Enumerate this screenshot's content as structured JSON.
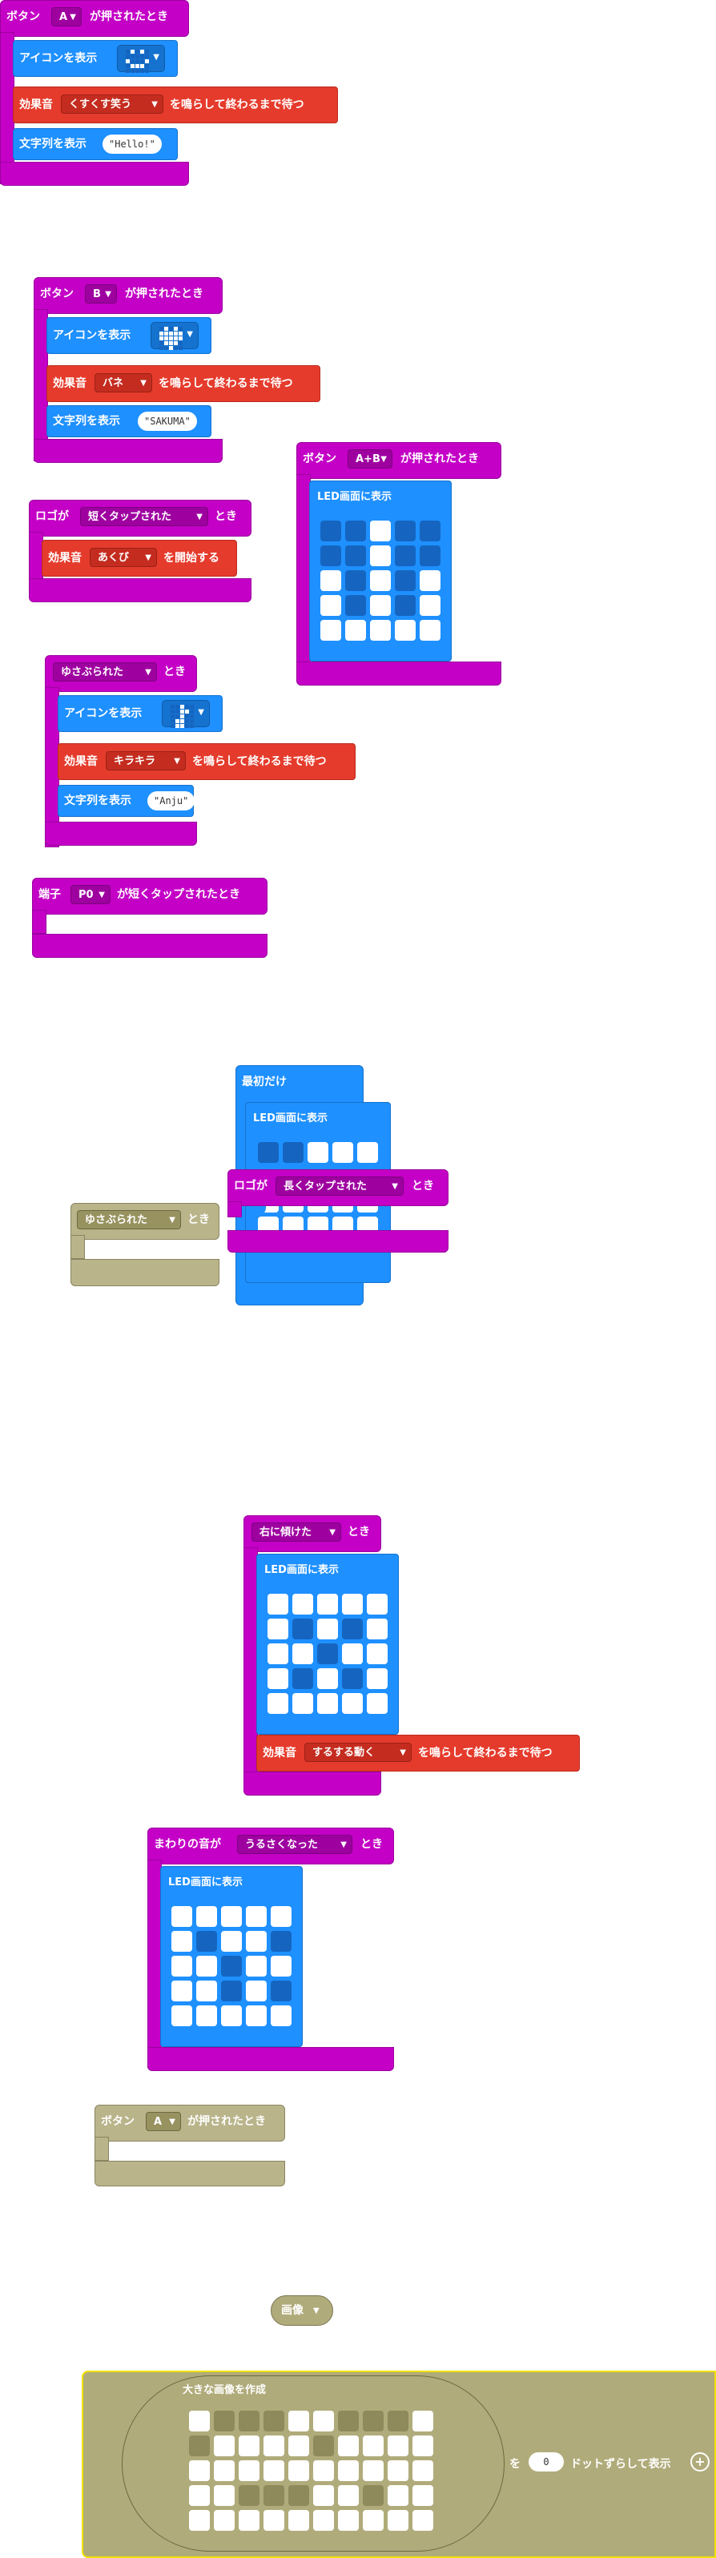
{
  "colors": {
    "event": "#c400c6",
    "basic": "#1e90ff",
    "music": "#e53b2c",
    "disabled": "#b0ab7a"
  },
  "blocks": {
    "btnA": {
      "prefix": "ボタン",
      "button": "A",
      "suffix": "が押されたとき",
      "show_icon": "アイコンを表示",
      "icon_mini": [
        0,
        1,
        0,
        1,
        0,
        0,
        0,
        0,
        0,
        0,
        1,
        0,
        0,
        0,
        1,
        0,
        1,
        1,
        1,
        0,
        0,
        0,
        0,
        0,
        0
      ],
      "sound_prefix": "効果音",
      "sound": "くすくす笑う",
      "sound_suffix": "を鳴らして終わるまで待つ",
      "show_string": "文字列を表示",
      "string": "Hello!"
    },
    "btnB": {
      "prefix": "ボタン",
      "button": "B",
      "suffix": "が押されたとき",
      "show_icon": "アイコンを表示",
      "icon_mini": [
        0,
        1,
        0,
        1,
        0,
        1,
        1,
        1,
        1,
        1,
        1,
        1,
        1,
        1,
        1,
        0,
        1,
        1,
        1,
        0,
        0,
        0,
        1,
        0,
        0
      ],
      "sound_prefix": "効果音",
      "sound": "バネ",
      "sound_suffix": "を鳴らして終わるまで待つ",
      "show_string": "文字列を表示",
      "string": "SAKUMA"
    },
    "btnAB": {
      "prefix": "ボタン",
      "button": "A+B",
      "suffix": "が押されたとき",
      "led_label": "LED画面に表示",
      "leds": [
        0,
        0,
        1,
        0,
        0,
        0,
        0,
        1,
        0,
        0,
        1,
        0,
        1,
        0,
        1,
        1,
        0,
        1,
        0,
        1,
        1,
        1,
        1,
        1,
        1
      ]
    },
    "logoShort": {
      "prefix": "ロゴが",
      "mode": "短くタップされた",
      "suffix": "とき",
      "sound_prefix": "効果音",
      "sound": "あくび",
      "sound_suffix": "を開始する"
    },
    "shake": {
      "gesture": "ゆさぶられた",
      "suffix": "とき",
      "show_icon": "アイコンを表示",
      "icon_mini": [
        0,
        0,
        1,
        0,
        0,
        0,
        0,
        1,
        1,
        0,
        0,
        0,
        1,
        0,
        0,
        0,
        1,
        1,
        0,
        0,
        0,
        1,
        1,
        0,
        0
      ],
      "sound_prefix": "効果音",
      "sound": "キラキラ",
      "sound_suffix": "を鳴らして終わるまで待つ",
      "show_string": "文字列を表示",
      "string": "Anju"
    },
    "pinShort": {
      "prefix": "端子",
      "pin": "P0",
      "suffix": "が短くタップされたとき"
    },
    "onStart": {
      "label": "最初だけ",
      "led_label": "LED画面に表示",
      "leds_row1": [
        0,
        0,
        1,
        1,
        1
      ]
    },
    "logoLong": {
      "prefix": "ロゴが",
      "mode": "長くタップされた",
      "suffix": "とき"
    },
    "shakeDisabled": {
      "gesture": "ゆさぶられた",
      "suffix": "とき"
    },
    "tiltRight": {
      "gesture": "右に傾けた",
      "suffix": "とき",
      "led_label": "LED画面に表示",
      "leds": [
        1,
        1,
        1,
        1,
        1,
        1,
        0,
        1,
        0,
        1,
        1,
        1,
        0,
        1,
        1,
        1,
        0,
        1,
        0,
        1,
        1,
        1,
        1,
        1,
        1
      ],
      "sound_prefix": "効果音",
      "sound": "するする動く",
      "sound_suffix": "を鳴らして終わるまで待つ"
    },
    "loud": {
      "prefix": "まわりの音が",
      "mode": "うるさくなった",
      "suffix": "とき",
      "led_label": "LED画面に表示",
      "leds": [
        1,
        1,
        1,
        1,
        1,
        1,
        0,
        1,
        1,
        0,
        1,
        1,
        0,
        1,
        1,
        1,
        1,
        0,
        1,
        0,
        1,
        1,
        1,
        1,
        1
      ]
    },
    "btnADisabled": {
      "prefix": "ボタン",
      "button": "A",
      "suffix": "が押されたとき"
    },
    "image": {
      "label": "画像"
    },
    "bigImage": {
      "label": "大きな画像を作成",
      "shift_prefix": "を",
      "shift_value": "0",
      "shift_suffix": "ドットずらして表示",
      "plus": "+",
      "leds": [
        1,
        0,
        0,
        0,
        1,
        1,
        0,
        0,
        0,
        1,
        0,
        1,
        1,
        1,
        1,
        0,
        1,
        1,
        1,
        1,
        1,
        1,
        1,
        1,
        1,
        1,
        1,
        1,
        1,
        1,
        1,
        1,
        0,
        0,
        0,
        1,
        1,
        0,
        1,
        1,
        1,
        1,
        1,
        1,
        1,
        1,
        1,
        1,
        1,
        1
      ]
    }
  }
}
